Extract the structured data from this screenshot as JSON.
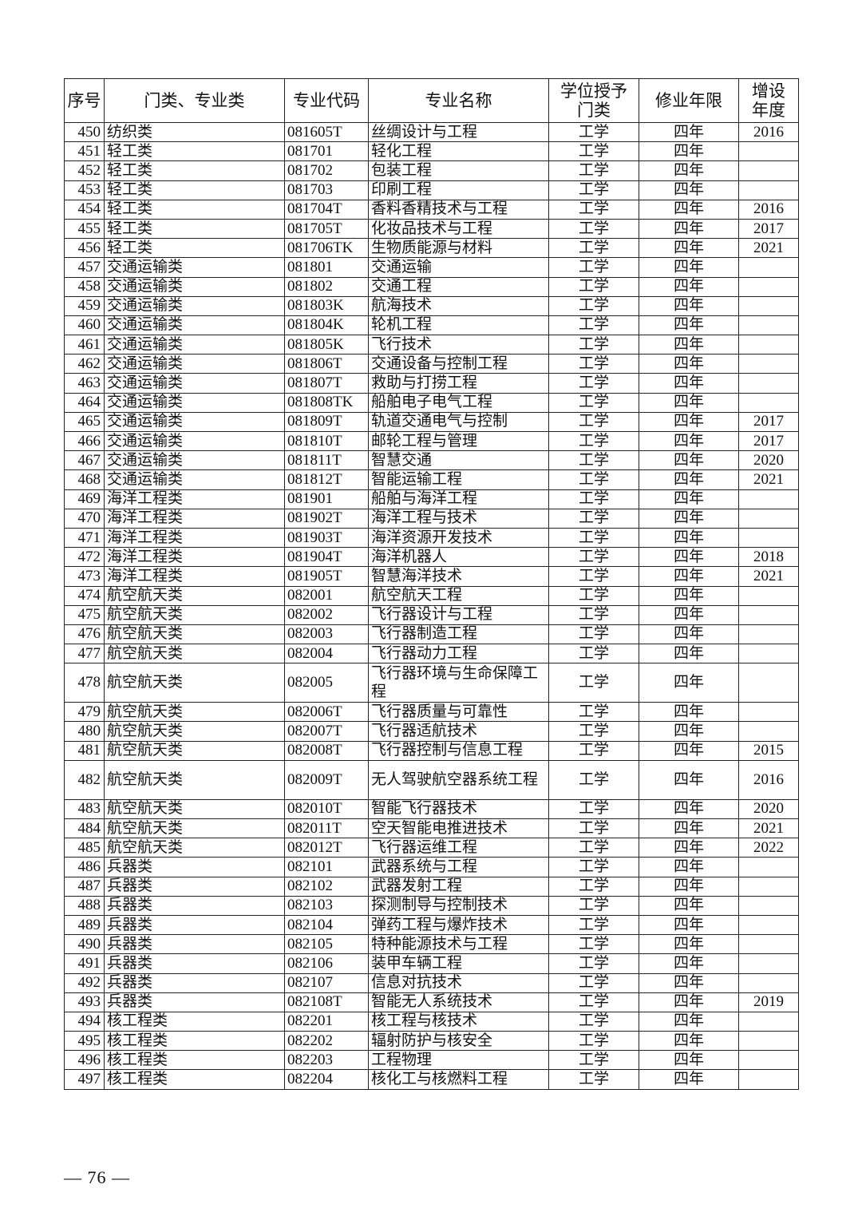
{
  "headers": [
    "序号",
    "门类、专业类",
    "专业代码",
    "专业名称",
    "学位授予门类",
    "修业年限",
    "增设年度"
  ],
  "rows": [
    [
      "450",
      "纺织类",
      "081605T",
      "丝绸设计与工程",
      "工学",
      "四年",
      "2016"
    ],
    [
      "451",
      "轻工类",
      "081701",
      "轻化工程",
      "工学",
      "四年",
      ""
    ],
    [
      "452",
      "轻工类",
      "081702",
      "包装工程",
      "工学",
      "四年",
      ""
    ],
    [
      "453",
      "轻工类",
      "081703",
      "印刷工程",
      "工学",
      "四年",
      ""
    ],
    [
      "454",
      "轻工类",
      "081704T",
      "香料香精技术与工程",
      "工学",
      "四年",
      "2016"
    ],
    [
      "455",
      "轻工类",
      "081705T",
      "化妆品技术与工程",
      "工学",
      "四年",
      "2017"
    ],
    [
      "456",
      "轻工类",
      "081706TK",
      "生物质能源与材料",
      "工学",
      "四年",
      "2021"
    ],
    [
      "457",
      "交通运输类",
      "081801",
      "交通运输",
      "工学",
      "四年",
      ""
    ],
    [
      "458",
      "交通运输类",
      "081802",
      "交通工程",
      "工学",
      "四年",
      ""
    ],
    [
      "459",
      "交通运输类",
      "081803K",
      "航海技术",
      "工学",
      "四年",
      ""
    ],
    [
      "460",
      "交通运输类",
      "081804K",
      "轮机工程",
      "工学",
      "四年",
      ""
    ],
    [
      "461",
      "交通运输类",
      "081805K",
      "飞行技术",
      "工学",
      "四年",
      ""
    ],
    [
      "462",
      "交通运输类",
      "081806T",
      "交通设备与控制工程",
      "工学",
      "四年",
      ""
    ],
    [
      "463",
      "交通运输类",
      "081807T",
      "救助与打捞工程",
      "工学",
      "四年",
      ""
    ],
    [
      "464",
      "交通运输类",
      "081808TK",
      "船舶电子电气工程",
      "工学",
      "四年",
      ""
    ],
    [
      "465",
      "交通运输类",
      "081809T",
      "轨道交通电气与控制",
      "工学",
      "四年",
      "2017"
    ],
    [
      "466",
      "交通运输类",
      "081810T",
      "邮轮工程与管理",
      "工学",
      "四年",
      "2017"
    ],
    [
      "467",
      "交通运输类",
      "081811T",
      "智慧交通",
      "工学",
      "四年",
      "2020"
    ],
    [
      "468",
      "交通运输类",
      "081812T",
      "智能运输工程",
      "工学",
      "四年",
      "2021"
    ],
    [
      "469",
      "海洋工程类",
      "081901",
      "船舶与海洋工程",
      "工学",
      "四年",
      ""
    ],
    [
      "470",
      "海洋工程类",
      "081902T",
      "海洋工程与技术",
      "工学",
      "四年",
      ""
    ],
    [
      "471",
      "海洋工程类",
      "081903T",
      "海洋资源开发技术",
      "工学",
      "四年",
      ""
    ],
    [
      "472",
      "海洋工程类",
      "081904T",
      "海洋机器人",
      "工学",
      "四年",
      "2018"
    ],
    [
      "473",
      "海洋工程类",
      "081905T",
      "智慧海洋技术",
      "工学",
      "四年",
      "2021"
    ],
    [
      "474",
      "航空航天类",
      "082001",
      "航空航天工程",
      "工学",
      "四年",
      ""
    ],
    [
      "475",
      "航空航天类",
      "082002",
      "飞行器设计与工程",
      "工学",
      "四年",
      ""
    ],
    [
      "476",
      "航空航天类",
      "082003",
      "飞行器制造工程",
      "工学",
      "四年",
      ""
    ],
    [
      "477",
      "航空航天类",
      "082004",
      "飞行器动力工程",
      "工学",
      "四年",
      ""
    ],
    [
      "478",
      "航空航天类",
      "082005",
      "飞行器环境与生命保障工程",
      "工学",
      "四年",
      ""
    ],
    [
      "479",
      "航空航天类",
      "082006T",
      "飞行器质量与可靠性",
      "工学",
      "四年",
      ""
    ],
    [
      "480",
      "航空航天类",
      "082007T",
      "飞行器适航技术",
      "工学",
      "四年",
      ""
    ],
    [
      "481",
      "航空航天类",
      "082008T",
      "飞行器控制与信息工程",
      "工学",
      "四年",
      "2015"
    ],
    [
      "482",
      "航空航天类",
      "082009T",
      "无人驾驶航空器系统工程",
      "工学",
      "四年",
      "2016"
    ],
    [
      "483",
      "航空航天类",
      "082010T",
      "智能飞行器技术",
      "工学",
      "四年",
      "2020"
    ],
    [
      "484",
      "航空航天类",
      "082011T",
      "空天智能电推进技术",
      "工学",
      "四年",
      "2021"
    ],
    [
      "485",
      "航空航天类",
      "082012T",
      "飞行器运维工程",
      "工学",
      "四年",
      "2022"
    ],
    [
      "486",
      "兵器类",
      "082101",
      "武器系统与工程",
      "工学",
      "四年",
      ""
    ],
    [
      "487",
      "兵器类",
      "082102",
      "武器发射工程",
      "工学",
      "四年",
      ""
    ],
    [
      "488",
      "兵器类",
      "082103",
      "探测制导与控制技术",
      "工学",
      "四年",
      ""
    ],
    [
      "489",
      "兵器类",
      "082104",
      "弹药工程与爆炸技术",
      "工学",
      "四年",
      ""
    ],
    [
      "490",
      "兵器类",
      "082105",
      "特种能源技术与工程",
      "工学",
      "四年",
      ""
    ],
    [
      "491",
      "兵器类",
      "082106",
      "装甲车辆工程",
      "工学",
      "四年",
      ""
    ],
    [
      "492",
      "兵器类",
      "082107",
      "信息对抗技术",
      "工学",
      "四年",
      ""
    ],
    [
      "493",
      "兵器类",
      "082108T",
      "智能无人系统技术",
      "工学",
      "四年",
      "2019"
    ],
    [
      "494",
      "核工程类",
      "082201",
      "核工程与核技术",
      "工学",
      "四年",
      ""
    ],
    [
      "495",
      "核工程类",
      "082202",
      "辐射防护与核安全",
      "工学",
      "四年",
      ""
    ],
    [
      "496",
      "核工程类",
      "082203",
      "工程物理",
      "工学",
      "四年",
      ""
    ],
    [
      "497",
      "核工程类",
      "082204",
      "核化工与核燃料工程",
      "工学",
      "四年",
      ""
    ]
  ],
  "footer": {
    "page_number": "— 76 —"
  }
}
